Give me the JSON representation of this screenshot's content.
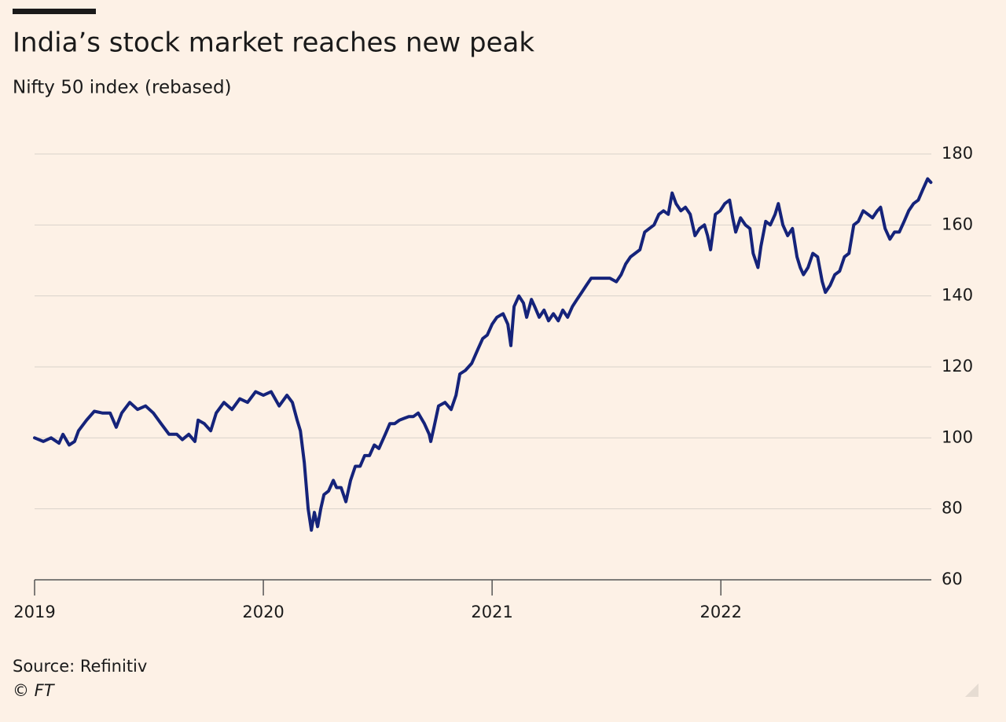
{
  "chart_data": {
    "type": "line",
    "title": "India’s stock market reaches new peak",
    "subtitle": "Nifty 50 index (rebased)",
    "source": "Source: Refinitiv",
    "credit": "© FT",
    "color": "#15237a",
    "grid": true,
    "xlim": [
      2019,
      2022.92
    ],
    "xticks": [
      2019,
      2020,
      2021,
      2022
    ],
    "ylim": [
      60,
      180
    ],
    "yticks": [
      60,
      80,
      100,
      120,
      140,
      160,
      180
    ],
    "x": [
      2019.0,
      2019.038,
      2019.072,
      2019.107,
      2019.124,
      2019.151,
      2019.175,
      2019.192,
      2019.227,
      2019.261,
      2019.296,
      2019.33,
      2019.357,
      2019.381,
      2019.416,
      2019.45,
      2019.485,
      2019.519,
      2019.553,
      2019.588,
      2019.622,
      2019.646,
      2019.674,
      2019.701,
      2019.715,
      2019.742,
      2019.77,
      2019.794,
      2019.828,
      2019.863,
      2019.897,
      2019.931,
      2019.966,
      2020.0,
      2020.034,
      2020.069,
      2020.103,
      2020.127,
      2020.148,
      2020.162,
      2020.179,
      2020.196,
      2020.21,
      2020.223,
      2020.237,
      2020.251,
      2020.265,
      2020.285,
      2020.306,
      2020.32,
      2020.34,
      2020.361,
      2020.381,
      2020.402,
      2020.423,
      2020.443,
      2020.464,
      2020.485,
      2020.505,
      2020.533,
      2020.553,
      2020.574,
      2020.595,
      2020.615,
      2020.636,
      2020.656,
      2020.677,
      2020.704,
      2020.725,
      2020.732,
      2020.746,
      2020.766,
      2020.794,
      2020.821,
      2020.842,
      2020.859,
      2020.883,
      2020.911,
      2020.938,
      2020.959,
      2020.979,
      2021.0,
      2021.021,
      2021.048,
      2021.069,
      2021.082,
      2021.096,
      2021.117,
      2021.137,
      2021.151,
      2021.172,
      2021.186,
      2021.206,
      2021.227,
      2021.247,
      2021.268,
      2021.289,
      2021.309,
      2021.33,
      2021.351,
      2021.371,
      2021.392,
      2021.412,
      2021.433,
      2021.46,
      2021.488,
      2021.515,
      2021.543,
      2021.564,
      2021.584,
      2021.605,
      2021.625,
      2021.646,
      2021.667,
      2021.687,
      2021.708,
      2021.729,
      2021.749,
      2021.77,
      2021.787,
      2021.804,
      2021.825,
      2021.845,
      2021.866,
      2021.887,
      2021.907,
      2021.928,
      2021.942,
      2021.955,
      2021.976,
      2021.997,
      2022.017,
      2022.038,
      2022.052,
      2022.065,
      2022.086,
      2022.107,
      2022.127,
      2022.141,
      2022.162,
      2022.175,
      2022.196,
      2022.216,
      2022.237,
      2022.251,
      2022.271,
      2022.292,
      2022.313,
      2022.333,
      2022.347,
      2022.361,
      2022.381,
      2022.402,
      2022.423,
      2022.443,
      2022.457,
      2022.478,
      2022.498,
      2022.519,
      2022.54,
      2022.56,
      2022.581,
      2022.601,
      2022.622,
      2022.643,
      2022.663,
      2022.684,
      2022.698,
      2022.718,
      2022.739,
      2022.759,
      2022.78,
      2022.801,
      2022.821,
      2022.842,
      2022.863,
      2022.883,
      2022.904,
      2022.918
    ],
    "values": [
      100,
      99,
      100,
      98.5,
      101,
      98,
      99,
      102,
      105,
      107.5,
      107,
      107,
      103,
      107,
      110,
      108,
      109,
      107,
      104,
      101,
      101,
      99.5,
      101,
      99,
      105,
      104,
      102,
      107,
      110,
      108,
      111,
      110,
      113,
      112,
      113,
      109,
      112,
      110,
      105,
      102,
      93,
      80,
      74,
      79,
      75,
      80,
      84,
      85,
      88,
      86,
      86,
      82,
      88,
      92,
      92,
      95,
      95,
      98,
      97,
      101,
      104,
      104,
      105,
      105.5,
      106,
      106,
      107,
      104,
      101,
      99,
      103,
      109,
      110,
      108,
      112,
      118,
      119,
      121,
      125,
      128,
      129,
      132,
      134,
      135,
      132,
      126,
      137,
      140,
      138,
      134,
      139,
      137,
      134,
      136,
      133,
      135,
      133,
      136,
      134,
      137,
      139,
      141,
      143,
      145,
      145,
      145,
      145,
      144,
      146,
      149,
      151,
      152,
      153,
      158,
      159,
      160,
      163,
      164,
      163,
      169,
      166,
      164,
      165,
      163,
      157,
      159,
      160,
      157,
      153,
      163,
      164,
      166,
      167,
      162,
      158,
      162,
      160,
      159,
      152,
      148,
      154,
      161,
      160,
      163,
      166,
      160,
      157,
      159,
      151,
      148,
      146,
      148,
      152,
      151,
      144,
      141,
      143,
      146,
      147,
      151,
      152,
      160,
      161,
      164,
      163,
      162,
      164,
      165,
      159,
      156,
      158,
      158,
      161,
      164,
      166,
      167,
      170,
      173,
      172
    ]
  }
}
